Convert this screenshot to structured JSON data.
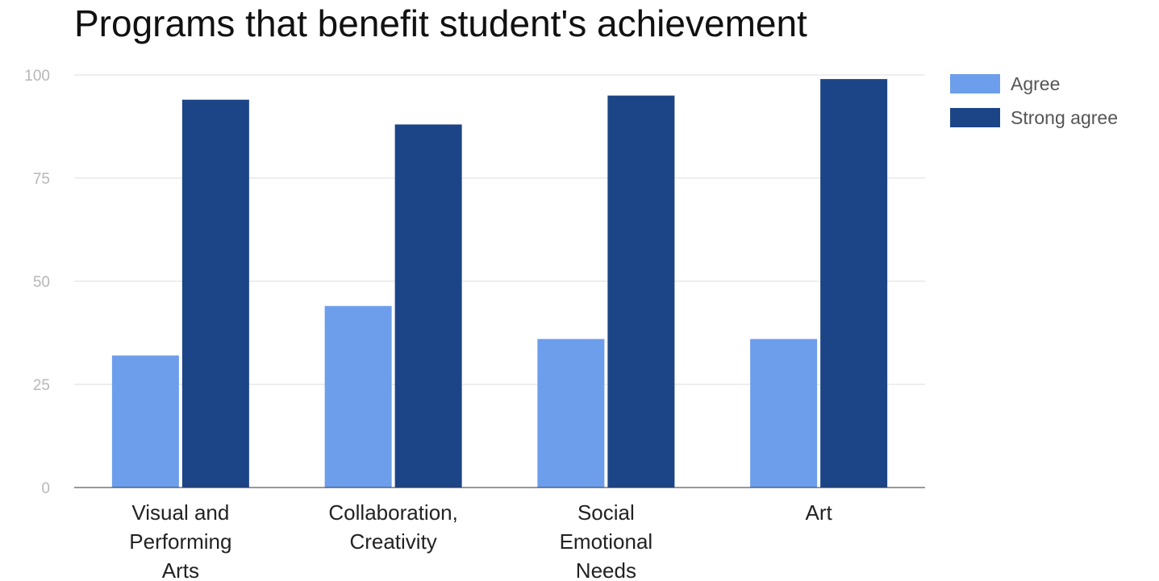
{
  "chart_data": {
    "type": "bar",
    "title": "Programs that benefit student's achievement",
    "categories": [
      [
        "Visual and",
        "Performing",
        "Arts"
      ],
      [
        "Collaboration,",
        "Creativity"
      ],
      [
        "Social",
        "Emotional",
        "Needs"
      ],
      [
        "Art"
      ]
    ],
    "series": [
      {
        "name": "Agree",
        "color": "#6d9eeb",
        "values": [
          32,
          44,
          36,
          36
        ]
      },
      {
        "name": "Strong agree",
        "color": "#1c4587",
        "values": [
          94,
          88,
          95,
          99
        ]
      }
    ],
    "ylim": [
      0,
      100
    ],
    "yticks": [
      "0",
      "25",
      "50",
      "75",
      "100"
    ],
    "grid": true,
    "legend_position": "right",
    "xlabel": "",
    "ylabel": ""
  }
}
